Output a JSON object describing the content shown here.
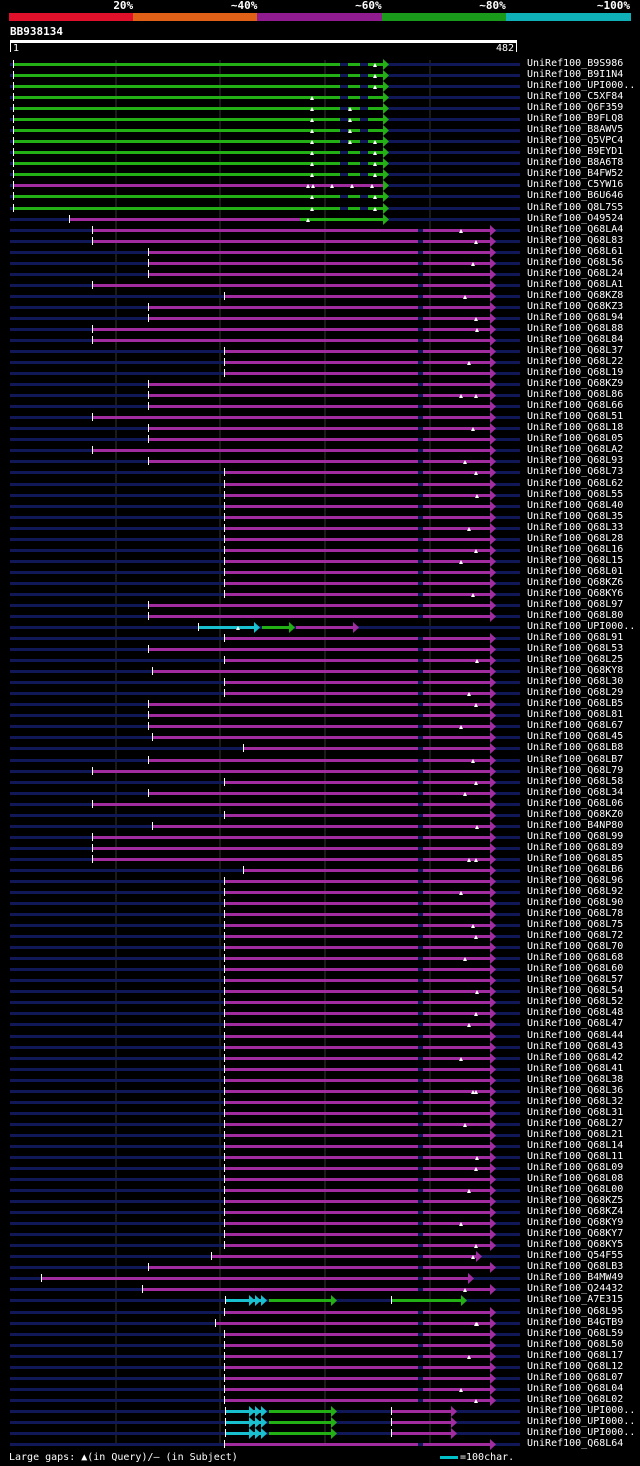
{
  "legend": {
    "segments": [
      {
        "label": "20%",
        "color": "#e0102a"
      },
      {
        "label": "~40%",
        "color": "#e06018"
      },
      {
        "label": "~60%",
        "color": "#901c90"
      },
      {
        "label": "~80%",
        "color": "#1a9a1a"
      },
      {
        "label": "~100%",
        "color": "#10b0b8"
      }
    ]
  },
  "query": {
    "name": "BB938134",
    "start": "1",
    "end": "482"
  },
  "colors": {
    "green": "#22b014",
    "purple": "#a02ca0",
    "cyan": "#18c0d0",
    "navy": "#101858",
    "white": "#ffffff"
  },
  "hits": [
    {
      "label": "UniRef100_B9S986",
      "type": "green"
    },
    {
      "label": "UniRef100_B9I1N4",
      "type": "green"
    },
    {
      "label": "UniRef100_UPI000..",
      "type": "green"
    },
    {
      "label": "UniRef100_C5XF84",
      "type": "green"
    },
    {
      "label": "UniRef100_Q6F359",
      "type": "green"
    },
    {
      "label": "UniRef100_B9FLQ8",
      "type": "green"
    },
    {
      "label": "UniRef100_B8AWV5",
      "type": "green"
    },
    {
      "label": "UniRef100_Q5VPC4",
      "type": "green"
    },
    {
      "label": "UniRef100_B9EYD1",
      "type": "green"
    },
    {
      "label": "UniRef100_B8A6T8",
      "type": "green"
    },
    {
      "label": "UniRef100_B4FW52",
      "type": "green"
    },
    {
      "label": "UniRef100_C5YW16",
      "type": "purplegreen"
    },
    {
      "label": "UniRef100_B6U646",
      "type": "green"
    },
    {
      "label": "UniRef100_Q8L7S5",
      "type": "green"
    },
    {
      "label": "UniRef100_O49524",
      "type": "purplegreen"
    },
    {
      "label": "UniRef100_Q68LA4",
      "type": "purple",
      "s": 93
    },
    {
      "label": "UniRef100_Q68L83",
      "type": "purple",
      "s": 93
    },
    {
      "label": "UniRef100_Q68L61",
      "type": "purple",
      "s": 149
    },
    {
      "label": "UniRef100_Q68L56",
      "type": "purple",
      "s": 149
    },
    {
      "label": "UniRef100_Q68L24",
      "type": "purple",
      "s": 149
    },
    {
      "label": "UniRef100_Q68LA1",
      "type": "purple",
      "s": 93
    },
    {
      "label": "UniRef100_Q68KZ8",
      "type": "purple",
      "s": 225
    },
    {
      "label": "UniRef100_Q68KZ3",
      "type": "purple",
      "s": 149
    },
    {
      "label": "UniRef100_Q68L94",
      "type": "purple",
      "s": 149
    },
    {
      "label": "UniRef100_Q68L88",
      "type": "purple",
      "s": 93
    },
    {
      "label": "UniRef100_Q68L84",
      "type": "purple",
      "s": 93
    },
    {
      "label": "UniRef100_Q68L37",
      "type": "purple",
      "s": 225
    },
    {
      "label": "UniRef100_Q68L22",
      "type": "purple",
      "s": 225
    },
    {
      "label": "UniRef100_Q68L19",
      "type": "purple",
      "s": 225
    },
    {
      "label": "UniRef100_Q68KZ9",
      "type": "purple",
      "s": 149
    },
    {
      "label": "UniRef100_Q68L86",
      "type": "purple",
      "s": 149
    },
    {
      "label": "UniRef100_Q68L66",
      "type": "purple",
      "s": 149
    },
    {
      "label": "UniRef100_Q68L51",
      "type": "purple",
      "s": 93
    },
    {
      "label": "UniRef100_Q68L18",
      "type": "purple",
      "s": 149
    },
    {
      "label": "UniRef100_Q68L05",
      "type": "purple",
      "s": 149
    },
    {
      "label": "UniRef100_Q68LA2",
      "type": "purple",
      "s": 93
    },
    {
      "label": "UniRef100_Q68L93",
      "type": "purple",
      "s": 149
    },
    {
      "label": "UniRef100_Q68L73",
      "type": "purple",
      "s": 225
    },
    {
      "label": "UniRef100_Q68L62",
      "type": "purple",
      "s": 225
    },
    {
      "label": "UniRef100_Q68L55",
      "type": "purple",
      "s": 225
    },
    {
      "label": "UniRef100_Q68L40",
      "type": "purple",
      "s": 225
    },
    {
      "label": "UniRef100_Q68L35",
      "type": "purple",
      "s": 225
    },
    {
      "label": "UniRef100_Q68L33",
      "type": "purple",
      "s": 225
    },
    {
      "label": "UniRef100_Q68L28",
      "type": "purple",
      "s": 225
    },
    {
      "label": "UniRef100_Q68L16",
      "type": "purple",
      "s": 225
    },
    {
      "label": "UniRef100_Q68L15",
      "type": "purple",
      "s": 225
    },
    {
      "label": "UniRef100_Q68L01",
      "type": "purple",
      "s": 225
    },
    {
      "label": "UniRef100_Q68KZ6",
      "type": "purple",
      "s": 225
    },
    {
      "label": "UniRef100_Q68KY6",
      "type": "purple",
      "s": 225
    },
    {
      "label": "UniRef100_Q68L97",
      "type": "purple",
      "s": 149
    },
    {
      "label": "UniRef100_Q68L80",
      "type": "purple",
      "s": 149
    },
    {
      "label": "UniRef100_UPI000..",
      "type": "cyanmix"
    },
    {
      "label": "UniRef100_Q68L91",
      "type": "purple",
      "s": 225
    },
    {
      "label": "UniRef100_Q68L53",
      "type": "purple",
      "s": 149
    },
    {
      "label": "UniRef100_Q68L25",
      "type": "purple",
      "s": 225
    },
    {
      "label": "UniRef100_Q68KY8",
      "type": "purple",
      "s": 153
    },
    {
      "label": "UniRef100_Q68L30",
      "type": "purple",
      "s": 225
    },
    {
      "label": "UniRef100_Q68L29",
      "type": "purple",
      "s": 225
    },
    {
      "label": "UniRef100_Q68LB5",
      "type": "purple",
      "s": 149
    },
    {
      "label": "UniRef100_Q68L81",
      "type": "purple",
      "s": 149
    },
    {
      "label": "UniRef100_Q68L67",
      "type": "purple",
      "s": 149
    },
    {
      "label": "UniRef100_Q68L45",
      "type": "purple",
      "s": 153
    },
    {
      "label": "UniRef100_Q68LB8",
      "type": "purple",
      "s": 244
    },
    {
      "label": "UniRef100_Q68LB7",
      "type": "purple",
      "s": 149
    },
    {
      "label": "UniRef100_Q68L79",
      "type": "purple",
      "s": 93
    },
    {
      "label": "UniRef100_Q68L58",
      "type": "purple",
      "s": 225
    },
    {
      "label": "UniRef100_Q68L34",
      "type": "purple",
      "s": 149
    },
    {
      "label": "UniRef100_Q68L06",
      "type": "purple",
      "s": 93
    },
    {
      "label": "UniRef100_Q68KZ0",
      "type": "purple",
      "s": 225
    },
    {
      "label": "UniRef100_B4NP80",
      "type": "purple",
      "s": 153
    },
    {
      "label": "UniRef100_Q68L99",
      "type": "purple",
      "s": 93
    },
    {
      "label": "UniRef100_Q68L89",
      "type": "purple",
      "s": 93
    },
    {
      "label": "UniRef100_Q68L85",
      "type": "purple",
      "s": 93
    },
    {
      "label": "UniRef100_Q68LB6",
      "type": "purple",
      "s": 244
    },
    {
      "label": "UniRef100_Q68L96",
      "type": "purple",
      "s": 225
    },
    {
      "label": "UniRef100_Q68L92",
      "type": "purple",
      "s": 225
    },
    {
      "label": "UniRef100_Q68L90",
      "type": "purple",
      "s": 225
    },
    {
      "label": "UniRef100_Q68L78",
      "type": "purple",
      "s": 225
    },
    {
      "label": "UniRef100_Q68L75",
      "type": "purple",
      "s": 225
    },
    {
      "label": "UniRef100_Q68L72",
      "type": "purple",
      "s": 225
    },
    {
      "label": "UniRef100_Q68L70",
      "type": "purple",
      "s": 225
    },
    {
      "label": "UniRef100_Q68L68",
      "type": "purple",
      "s": 225
    },
    {
      "label": "UniRef100_Q68L60",
      "type": "purple",
      "s": 225
    },
    {
      "label": "UniRef100_Q68L57",
      "type": "purple",
      "s": 225
    },
    {
      "label": "UniRef100_Q68L54",
      "type": "purple",
      "s": 225
    },
    {
      "label": "UniRef100_Q68L52",
      "type": "purple",
      "s": 225
    },
    {
      "label": "UniRef100_Q68L48",
      "type": "purple",
      "s": 225
    },
    {
      "label": "UniRef100_Q68L47",
      "type": "purple",
      "s": 225
    },
    {
      "label": "UniRef100_Q68L44",
      "type": "purple",
      "s": 225
    },
    {
      "label": "UniRef100_Q68L43",
      "type": "purple",
      "s": 225
    },
    {
      "label": "UniRef100_Q68L42",
      "type": "purple",
      "s": 225
    },
    {
      "label": "UniRef100_Q68L41",
      "type": "purple",
      "s": 225
    },
    {
      "label": "UniRef100_Q68L38",
      "type": "purple",
      "s": 225
    },
    {
      "label": "UniRef100_Q68L36",
      "type": "purple",
      "s": 225
    },
    {
      "label": "UniRef100_Q68L32",
      "type": "purple",
      "s": 225
    },
    {
      "label": "UniRef100_Q68L31",
      "type": "purple",
      "s": 225
    },
    {
      "label": "UniRef100_Q68L27",
      "type": "purple",
      "s": 225
    },
    {
      "label": "UniRef100_Q68L21",
      "type": "purple",
      "s": 225
    },
    {
      "label": "UniRef100_Q68L14",
      "type": "purple",
      "s": 225
    },
    {
      "label": "UniRef100_Q68L11",
      "type": "purple",
      "s": 225
    },
    {
      "label": "UniRef100_Q68L09",
      "type": "purple",
      "s": 225
    },
    {
      "label": "UniRef100_Q68L08",
      "type": "purple",
      "s": 225
    },
    {
      "label": "UniRef100_Q68L00",
      "type": "purple",
      "s": 225
    },
    {
      "label": "UniRef100_Q68KZ5",
      "type": "purple",
      "s": 225
    },
    {
      "label": "UniRef100_Q68KZ4",
      "type": "purple",
      "s": 225
    },
    {
      "label": "UniRef100_Q68KY9",
      "type": "purple",
      "s": 225
    },
    {
      "label": "UniRef100_Q68KY7",
      "type": "purple",
      "s": 225
    },
    {
      "label": "UniRef100_Q68KY5",
      "type": "purple",
      "s": 225
    },
    {
      "label": "UniRef100_Q54F55",
      "type": "purple",
      "s": 212,
      "e": 478
    },
    {
      "label": "UniRef100_Q68LB3",
      "type": "purple",
      "s": 149
    },
    {
      "label": "UniRef100_B4MW49",
      "type": "purple",
      "s": 42,
      "e": 470
    },
    {
      "label": "UniRef100_Q24432",
      "type": "purple",
      "s": 143
    },
    {
      "label": "UniRef100_A7E315",
      "type": "cyanmix2"
    },
    {
      "label": "UniRef100_Q68L95",
      "type": "purple",
      "s": 225
    },
    {
      "label": "UniRef100_B4GTB9",
      "type": "purple",
      "s": 216
    },
    {
      "label": "UniRef100_Q68L59",
      "type": "purple",
      "s": 225
    },
    {
      "label": "UniRef100_Q68L50",
      "type": "purple",
      "s": 225
    },
    {
      "label": "UniRef100_Q68L17",
      "type": "purple",
      "s": 225
    },
    {
      "label": "UniRef100_Q68L12",
      "type": "purple",
      "s": 225
    },
    {
      "label": "UniRef100_Q68L07",
      "type": "purple",
      "s": 225
    },
    {
      "label": "UniRef100_Q68L04",
      "type": "purple",
      "s": 225
    },
    {
      "label": "UniRef100_Q68L02",
      "type": "purple",
      "s": 225
    },
    {
      "label": "UniRef100_UPI000..",
      "type": "cyanmix3"
    },
    {
      "label": "UniRef100_UPI000..",
      "type": "cyanmix3"
    },
    {
      "label": "UniRef100_UPI000..",
      "type": "cyanmix3"
    },
    {
      "label": "UniRef100_Q68L64",
      "type": "purple",
      "s": 225
    }
  ],
  "footer": {
    "text": "Large gaps: ▲(in Query)/– (in Subject)",
    "scale": "=100char."
  }
}
